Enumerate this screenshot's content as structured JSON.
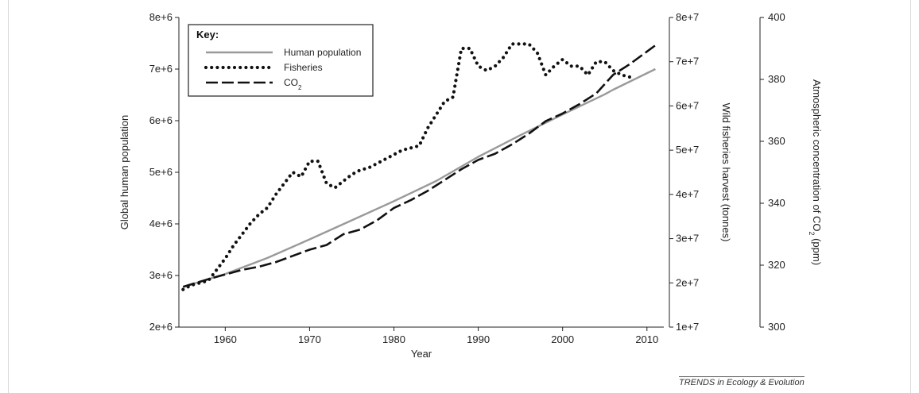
{
  "credit": "TRENDS in Ecology & Evolution",
  "chart_data": {
    "type": "line",
    "xlabel": "Year",
    "xlim": [
      1954.5,
      2012
    ],
    "x_ticks": [
      1960,
      1970,
      1980,
      1990,
      2000,
      2010
    ],
    "legend_title": "Key:",
    "legend_position": "top-left",
    "grid": false,
    "axes": {
      "left": {
        "label": "Global human population",
        "ylim": [
          2000000,
          8000000
        ],
        "ticks": [
          2000000,
          3000000,
          4000000,
          5000000,
          6000000,
          7000000,
          8000000
        ],
        "tick_labels": [
          "2e+6",
          "3e+6",
          "4e+6",
          "5e+6",
          "6e+6",
          "7e+6",
          "8e+6"
        ]
      },
      "right1": {
        "label": "Wild fisheries harvest (tonnes)",
        "ylim": [
          10000000,
          80000000
        ],
        "ticks": [
          10000000,
          20000000,
          30000000,
          40000000,
          50000000,
          60000000,
          70000000,
          80000000
        ],
        "tick_labels": [
          "1e+7",
          "2e+7",
          "3e+7",
          "4e+7",
          "5e+7",
          "6e+7",
          "7e+7",
          "8e+7"
        ]
      },
      "right2": {
        "label_main": "Atmospheric concentration of CO",
        "label_sub": "2",
        "label_unit": " (ppm)",
        "ylim": [
          300,
          400
        ],
        "ticks": [
          300,
          320,
          340,
          360,
          380,
          400
        ],
        "tick_labels": [
          "300",
          "320",
          "340",
          "360",
          "380",
          "400"
        ]
      }
    },
    "series": [
      {
        "name": "Human population",
        "axis": "left",
        "style": "solid",
        "color": "#9a9a9a",
        "x": [
          1955,
          1960,
          1965,
          1970,
          1975,
          1980,
          1985,
          1990,
          1995,
          2000,
          2005,
          2006,
          2011
        ],
        "y": [
          2780000,
          3030000,
          3340000,
          3700000,
          4070000,
          4440000,
          4830000,
          5300000,
          5720000,
          6120000,
          6510000,
          6600000,
          7000000
        ]
      },
      {
        "name": "Fisheries",
        "name_sub": "",
        "axis": "right1",
        "style": "dotted",
        "color": "#111111",
        "x": [
          1955,
          1956,
          1957,
          1958,
          1959,
          1960,
          1961,
          1962,
          1963,
          1964,
          1965,
          1966,
          1967,
          1968,
          1969,
          1970,
          1971,
          1972,
          1973,
          1974,
          1975,
          1976,
          1977,
          1978,
          1979,
          1980,
          1981,
          1982,
          1983,
          1984,
          1985,
          1986,
          1987,
          1988,
          1989,
          1990,
          1991,
          1992,
          1993,
          1994,
          1995,
          1996,
          1997,
          1998,
          1999,
          2000,
          2001,
          2002,
          2003,
          2004,
          2005,
          2006,
          2007,
          2008
        ],
        "y": [
          18500000,
          19500000,
          20000000,
          20500000,
          23000000,
          25500000,
          28500000,
          31000000,
          33500000,
          35500000,
          37000000,
          40000000,
          42500000,
          45000000,
          44000000,
          47500000,
          47500000,
          42500000,
          41500000,
          43000000,
          44500000,
          45500000,
          46000000,
          47000000,
          48000000,
          49000000,
          50000000,
          50500000,
          51000000,
          55000000,
          58000000,
          61000000,
          62000000,
          73000000,
          73000000,
          69000000,
          68000000,
          69000000,
          71000000,
          74000000,
          74000000,
          74000000,
          72000000,
          67000000,
          69000000,
          70500000,
          69000000,
          69000000,
          67000000,
          70000000,
          70000000,
          68000000,
          67000000,
          66500000
        ]
      },
      {
        "name_main": "CO",
        "name_sub": "2",
        "axis": "right2",
        "style": "dashed",
        "color": "#111111",
        "x": [
          1955,
          1958,
          1960,
          1962,
          1964,
          1966,
          1968,
          1970,
          1972,
          1974,
          1976,
          1978,
          1980,
          1982,
          1984,
          1986,
          1988,
          1990,
          1992,
          1994,
          1996,
          1998,
          2000,
          2002,
          2004,
          2006,
          2008,
          2010,
          2011
        ],
        "y": [
          313,
          315.5,
          317,
          318.5,
          319.5,
          321,
          323,
          325,
          326.5,
          330,
          331.5,
          334.5,
          338.5,
          341,
          344,
          347.5,
          351,
          354,
          356,
          359,
          362.5,
          366.5,
          369,
          372,
          375.5,
          381.5,
          385,
          389,
          391
        ]
      }
    ],
    "legend_entries": [
      {
        "label": "Human population"
      },
      {
        "label": "Fisheries"
      },
      {
        "label_main": "CO",
        "label_sub": "2"
      }
    ]
  }
}
